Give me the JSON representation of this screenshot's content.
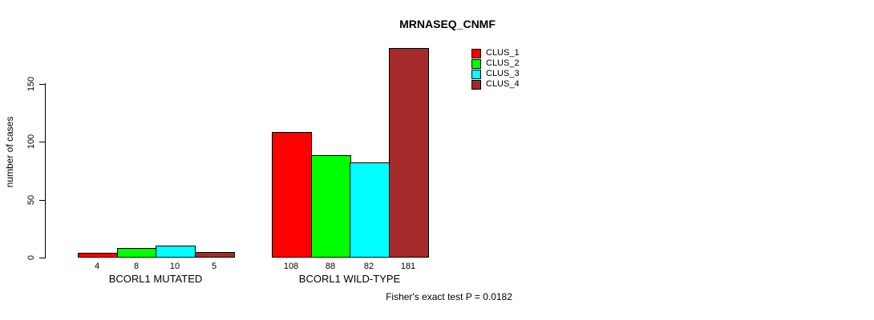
{
  "page": {
    "background": "#ffffff"
  },
  "chart_data": {
    "type": "bar",
    "title": "MRNASEQ_CNMF",
    "xlabel": "",
    "ylabel": "number of cases",
    "categories": [
      "BCORL1 MUTATED",
      "BCORL1 WILD-TYPE"
    ],
    "series": [
      {
        "name": "CLUS_1",
        "color": "#ff0000",
        "values": [
          4,
          108
        ]
      },
      {
        "name": "CLUS_2",
        "color": "#00ff00",
        "values": [
          8,
          88
        ]
      },
      {
        "name": "CLUS_3",
        "color": "#00ffff",
        "values": [
          10,
          82
        ]
      },
      {
        "name": "CLUS_4",
        "color": "#a52a2a",
        "values": [
          5,
          181
        ]
      }
    ],
    "bar_value_labels": [
      [
        "4",
        "8",
        "10",
        "5"
      ],
      [
        "108",
        "88",
        "82",
        "181"
      ]
    ],
    "yticks": [
      "0",
      "50",
      "100",
      "150"
    ],
    "ylim": [
      0,
      183
    ],
    "grid": false,
    "legend_position": "top-right",
    "annotation": "Fisher's exact test P = 0.0182",
    "colors": {
      "axis": "#000000",
      "text": "#000000",
      "bar_border": "#000000"
    }
  }
}
